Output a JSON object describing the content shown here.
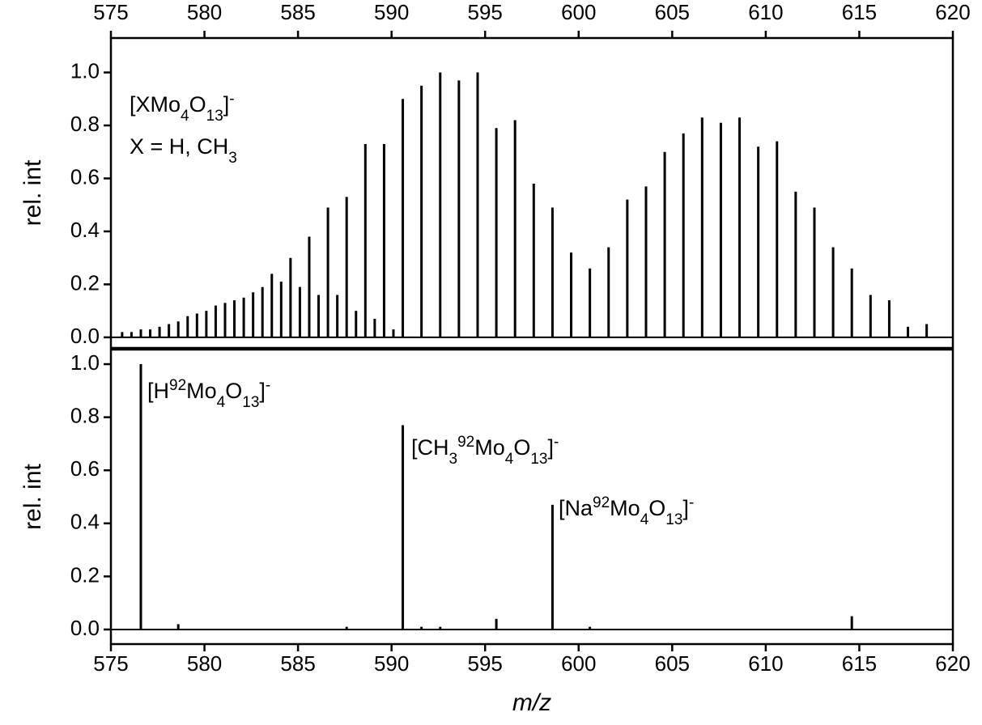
{
  "chart_data": [
    {
      "type": "stem",
      "color": "#000000",
      "xaxis": "top",
      "ylabel": "rel. int",
      "xlim": [
        575,
        620
      ],
      "xticks": [
        575,
        580,
        585,
        590,
        595,
        600,
        605,
        610,
        615,
        620
      ],
      "ylim": [
        -0.04,
        1.13
      ],
      "yticks": [
        {
          "value": 0,
          "label": "0.0"
        },
        0.2,
        0.4,
        0.6,
        0.8,
        {
          "value": 1,
          "label": "1.0"
        }
      ],
      "x": [
        575.6,
        576.1,
        576.6,
        577.1,
        577.6,
        578.1,
        578.6,
        579.1,
        579.6,
        580.1,
        580.6,
        581.1,
        581.6,
        582.1,
        582.6,
        583.1,
        583.6,
        584.1,
        584.6,
        585.1,
        585.6,
        586.1,
        586.6,
        587.1,
        587.6,
        588.1,
        588.6,
        589.1,
        589.6,
        590.1,
        590.6,
        591.6,
        592.6,
        593.6,
        594.6,
        595.6,
        596.6,
        597.6,
        598.6,
        599.6,
        600.6,
        601.6,
        602.6,
        603.6,
        604.6,
        605.6,
        606.6,
        607.6,
        608.6,
        609.6,
        610.6,
        611.6,
        612.6,
        613.6,
        614.6,
        615.6,
        616.6,
        617.6,
        618.6
      ],
      "values": [
        0.02,
        0.02,
        0.03,
        0.03,
        0.04,
        0.05,
        0.06,
        0.08,
        0.09,
        0.1,
        0.12,
        0.13,
        0.14,
        0.15,
        0.17,
        0.19,
        0.24,
        0.21,
        0.3,
        0.19,
        0.38,
        0.16,
        0.49,
        0.16,
        0.53,
        0.1,
        0.73,
        0.07,
        0.73,
        0.03,
        0.9,
        0.95,
        1.0,
        0.97,
        1.0,
        0.79,
        0.82,
        0.58,
        0.49,
        0.32,
        0.26,
        0.34,
        0.52,
        0.57,
        0.7,
        0.77,
        0.83,
        0.81,
        0.83,
        0.72,
        0.74,
        0.55,
        0.49,
        0.34,
        0.26,
        0.16,
        0.14,
        0.04,
        0.05
      ],
      "annotations": [
        [
          {
            "t": "[XMo"
          },
          {
            "t": "4",
            "s": "sub"
          },
          {
            "t": "O"
          },
          {
            "t": "13",
            "s": "sub"
          },
          {
            "t": "]"
          },
          {
            "t": "-",
            "s": "super"
          }
        ],
        [
          {
            "t": "X = H, CH"
          },
          {
            "t": "3",
            "s": "sub"
          }
        ]
      ]
    },
    {
      "type": "stem",
      "color": "#000000",
      "xaxis": "bottom",
      "ylabel": "rel. int",
      "xlabel": "m/z",
      "xlim": [
        575,
        620
      ],
      "xticks": [
        575,
        580,
        585,
        590,
        595,
        600,
        605,
        610,
        615,
        620
      ],
      "ylim": [
        -0.055,
        1.055
      ],
      "yticks": [
        {
          "value": 0,
          "label": "0.0"
        },
        0.2,
        0.4,
        0.6,
        0.8,
        {
          "value": 1,
          "label": "1.0"
        }
      ],
      "x": [
        576.6,
        578.6,
        587.6,
        590.6,
        591.6,
        592.6,
        595.6,
        598.6,
        600.6,
        614.6
      ],
      "values": [
        1.0,
        0.02,
        0.01,
        0.77,
        0.01,
        0.01,
        0.04,
        0.47,
        0.01,
        0.05
      ],
      "annotations": [
        [
          {
            "t": "[H"
          },
          {
            "t": "92",
            "s": "super"
          },
          {
            "t": "Mo"
          },
          {
            "t": "4",
            "s": "sub"
          },
          {
            "t": "O"
          },
          {
            "t": "13",
            "s": "sub"
          },
          {
            "t": "]"
          },
          {
            "t": "-",
            "s": "super"
          }
        ],
        [
          {
            "t": "[CH"
          },
          {
            "t": "3",
            "s": "sub"
          },
          {
            "t": "92",
            "s": "super"
          },
          {
            "t": "Mo"
          },
          {
            "t": "4",
            "s": "sub"
          },
          {
            "t": "O"
          },
          {
            "t": "13",
            "s": "sub"
          },
          {
            "t": "]"
          },
          {
            "t": "-",
            "s": "super"
          }
        ],
        [
          {
            "t": "[Na"
          },
          {
            "t": "92",
            "s": "super"
          },
          {
            "t": "Mo"
          },
          {
            "t": "4",
            "s": "sub"
          },
          {
            "t": "O"
          },
          {
            "t": "13",
            "s": "sub"
          },
          {
            "t": "]"
          },
          {
            "t": "-",
            "s": "super"
          }
        ]
      ]
    }
  ]
}
